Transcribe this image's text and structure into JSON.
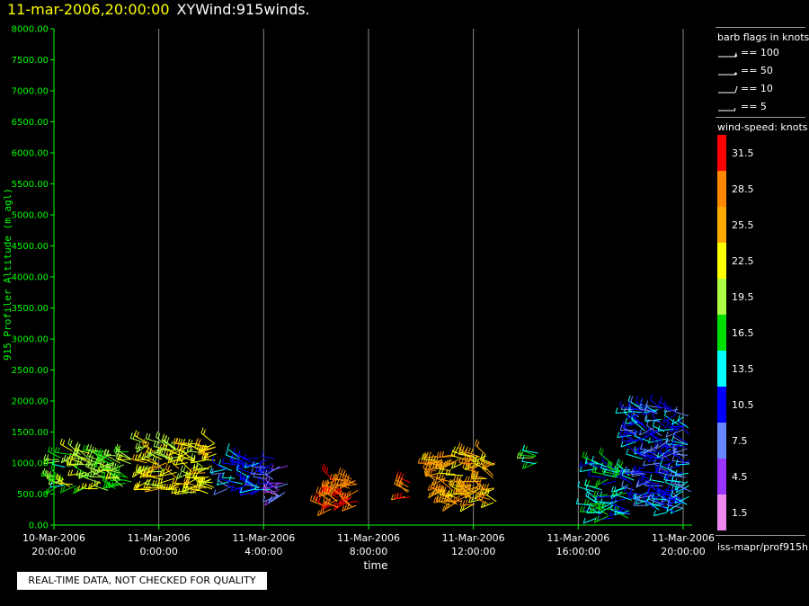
{
  "header": {
    "date_time": "11-mar-2006,20:00:00",
    "title": "XYWind:915winds."
  },
  "quality_note": "REAL-TIME DATA, NOT CHECKED FOR QUALITY",
  "legend": {
    "barb_title": "barb flags in knots",
    "barbs": [
      {
        "label": "== 100",
        "kind": "pennant"
      },
      {
        "label": "== 50",
        "kind": "triangle"
      },
      {
        "label": "== 10",
        "kind": "full"
      },
      {
        "label": "== 5",
        "kind": "half"
      }
    ],
    "colorbar_title": "wind-speed: knots",
    "colorbar": [
      {
        "label": "31.5",
        "color": "#ff0000"
      },
      {
        "label": "28.5",
        "color": "#ff8800"
      },
      {
        "label": "25.5",
        "color": "#ffaa00"
      },
      {
        "label": "22.5",
        "color": "#ffff00"
      },
      {
        "label": "19.5",
        "color": "#aaff44"
      },
      {
        "label": "16.5",
        "color": "#00dd00"
      },
      {
        "label": "13.5",
        "color": "#00ffff"
      },
      {
        "label": "10.5",
        "color": "#0000ff"
      },
      {
        "label": "7.5",
        "color": "#6688ff"
      },
      {
        "label": "4.5",
        "color": "#9933ff"
      },
      {
        "label": "1.5",
        "color": "#ee88ee"
      }
    ],
    "footer": "iss-mapr/prof915h"
  },
  "colors": {
    "axis": "#00ff00",
    "grid": "#888888"
  },
  "chart_data": {
    "type": "scatter",
    "subtype": "wind-barb time-height",
    "xlabel": "time",
    "ylabel": "915 Profiler Altitude (m agl)",
    "xlim": [
      0,
      24
    ],
    "ylim": [
      0,
      8000
    ],
    "x_unit": "hours after 10-Mar-2006 20:00:00",
    "x_ticks": [
      {
        "x": 0,
        "date": "10-Mar-2006",
        "time": "20:00:00"
      },
      {
        "x": 4,
        "date": "11-Mar-2006",
        "time": "0:00:00"
      },
      {
        "x": 8,
        "date": "11-Mar-2006",
        "time": "4:00:00"
      },
      {
        "x": 12,
        "date": "11-Mar-2006",
        "time": "8:00:00"
      },
      {
        "x": 16,
        "date": "11-Mar-2006",
        "time": "12:00:00"
      },
      {
        "x": 20,
        "date": "11-Mar-2006",
        "time": "16:00:00"
      },
      {
        "x": 24,
        "date": "11-Mar-2006",
        "time": "20:00:00"
      }
    ],
    "y_ticks": [
      "0.00",
      "500.00",
      "1000.00",
      "1500.00",
      "2000.00",
      "2500.00",
      "3000.00",
      "3500.00",
      "4000.00",
      "4500.00",
      "5000.00",
      "5500.00",
      "6000.00",
      "6500.00",
      "7000.00",
      "7500.00",
      "8000.00"
    ],
    "grid": "vertical lines at each time tick",
    "clusters": [
      {
        "x_range": [
          0.0,
          0.5
        ],
        "alt_range": [
          550,
          1100
        ],
        "speed_kt": 16.5
      },
      {
        "x_range": [
          0.6,
          3.0
        ],
        "alt_range": [
          550,
          1200
        ],
        "speed_kt": 19.5
      },
      {
        "x_range": [
          3.5,
          6.2
        ],
        "alt_range": [
          500,
          1350
        ],
        "speed_kt": 22.5
      },
      {
        "x_range": [
          6.5,
          8.5
        ],
        "alt_range": [
          550,
          1100
        ],
        "speed_kt": 10.5
      },
      {
        "x_range": [
          8.5,
          9.0
        ],
        "alt_range": [
          450,
          1000
        ],
        "speed_kt": 4.5
      },
      {
        "x_range": [
          10.2,
          11.6
        ],
        "alt_range": [
          250,
          800
        ],
        "speed_kt": 28.5
      },
      {
        "x_range": [
          13.4,
          13.6
        ],
        "alt_range": [
          450,
          750
        ],
        "speed_kt": 28.5
      },
      {
        "x_range": [
          14.5,
          16.9
        ],
        "alt_range": [
          300,
          1150
        ],
        "speed_kt": 25.5
      },
      {
        "x_range": [
          18.3,
          18.5
        ],
        "alt_range": [
          900,
          1200
        ],
        "speed_kt": 16.5
      },
      {
        "x_range": [
          20.6,
          22.0
        ],
        "alt_range": [
          100,
          1050
        ],
        "speed_kt": 13.5
      },
      {
        "x_range": [
          22.0,
          24.3
        ],
        "alt_range": [
          200,
          1900
        ],
        "speed_kt": 10.5
      }
    ]
  }
}
